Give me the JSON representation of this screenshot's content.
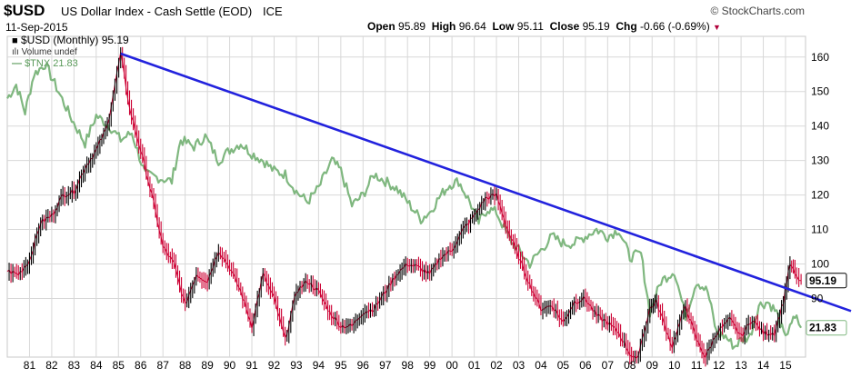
{
  "header": {
    "ticker": "$USD",
    "name": "US Dollar Index - Cash Settle (EOD)",
    "exchange": "ICE",
    "brand": "© StockCharts.com",
    "date": "11-Sep-2015",
    "open_label": "Open",
    "open": "95.89",
    "high_label": "High",
    "high": "96.64",
    "low_label": "Low",
    "low": "95.11",
    "close_label": "Close",
    "close": "95.19",
    "chg_label": "Chg",
    "chg": "-0.66 (-0.69%)"
  },
  "legend": {
    "main": "$USD (Monthly) 95.19",
    "volume": "Volume undef",
    "tnx": "$TNX 21.83"
  },
  "colors": {
    "up": "#000000",
    "down": "#cc0033",
    "tnx": "#7fb77f",
    "trendline": "#2222dd",
    "grid": "#d8d8d8"
  },
  "chart_data": {
    "type": "line",
    "ylim": [
      73,
      166
    ],
    "yticks": [
      90,
      100,
      110,
      120,
      130,
      140,
      150,
      160
    ],
    "y_right_labels": [
      {
        "value": 95.19,
        "label": "95.19"
      },
      {
        "value": 81.5,
        "label": "21.83"
      }
    ],
    "x_labels": [
      "81",
      "82",
      "83",
      "84",
      "85",
      "86",
      "87",
      "88",
      "89",
      "90",
      "91",
      "92",
      "93",
      "94",
      "95",
      "96",
      "97",
      "98",
      "99",
      "00",
      "01",
      "02",
      "03",
      "04",
      "05",
      "06",
      "07",
      "08",
      "09",
      "10",
      "11",
      "12",
      "13",
      "14",
      "15"
    ],
    "x_start_year": 1980.0,
    "x_end_year": 2015.9,
    "series": [
      {
        "name": "$USD (Monthly)",
        "kind": "price",
        "points": [
          [
            1980.0,
            98
          ],
          [
            1980.5,
            97
          ],
          [
            1981.0,
            101
          ],
          [
            1981.5,
            112
          ],
          [
            1982.0,
            114
          ],
          [
            1982.5,
            120
          ],
          [
            1983.0,
            121
          ],
          [
            1983.5,
            128
          ],
          [
            1984.0,
            133
          ],
          [
            1984.5,
            140
          ],
          [
            1985.1,
            161
          ],
          [
            1985.5,
            145
          ],
          [
            1986.0,
            133
          ],
          [
            1986.5,
            120
          ],
          [
            1987.0,
            105
          ],
          [
            1987.5,
            100
          ],
          [
            1988.0,
            88
          ],
          [
            1988.5,
            97
          ],
          [
            1989.0,
            95
          ],
          [
            1989.5,
            104
          ],
          [
            1990.0,
            99
          ],
          [
            1990.5,
            92
          ],
          [
            1991.0,
            82
          ],
          [
            1991.5,
            97
          ],
          [
            1992.0,
            90
          ],
          [
            1992.5,
            78
          ],
          [
            1993.0,
            92
          ],
          [
            1993.5,
            95
          ],
          [
            1994.0,
            92
          ],
          [
            1994.5,
            86
          ],
          [
            1995.0,
            82
          ],
          [
            1995.5,
            82
          ],
          [
            1996.0,
            86
          ],
          [
            1996.5,
            87
          ],
          [
            1997.0,
            92
          ],
          [
            1997.5,
            97
          ],
          [
            1998.0,
            100
          ],
          [
            1998.5,
            99
          ],
          [
            1999.0,
            97
          ],
          [
            1999.5,
            102
          ],
          [
            2000.0,
            104
          ],
          [
            2000.5,
            110
          ],
          [
            2001.0,
            114
          ],
          [
            2001.5,
            119
          ],
          [
            2002.0,
            120
          ],
          [
            2002.5,
            110
          ],
          [
            2003.0,
            102
          ],
          [
            2003.5,
            94
          ],
          [
            2004.0,
            87
          ],
          [
            2004.5,
            88
          ],
          [
            2005.0,
            83
          ],
          [
            2005.5,
            89
          ],
          [
            2006.0,
            90
          ],
          [
            2006.5,
            85
          ],
          [
            2007.0,
            83
          ],
          [
            2007.5,
            80
          ],
          [
            2008.0,
            74
          ],
          [
            2008.3,
            72
          ],
          [
            2008.9,
            87
          ],
          [
            2009.2,
            89
          ],
          [
            2009.9,
            76
          ],
          [
            2010.5,
            88
          ],
          [
            2011.0,
            78
          ],
          [
            2011.4,
            73
          ],
          [
            2011.9,
            80
          ],
          [
            2012.5,
            84
          ],
          [
            2013.0,
            79
          ],
          [
            2013.5,
            84
          ],
          [
            2014.0,
            80
          ],
          [
            2014.5,
            80
          ],
          [
            2014.9,
            89
          ],
          [
            2015.2,
            100
          ],
          [
            2015.5,
            96
          ],
          [
            2015.7,
            95.19
          ]
        ]
      },
      {
        "name": "$TNX",
        "kind": "overlay",
        "points": [
          [
            1980.0,
            148
          ],
          [
            1980.4,
            152
          ],
          [
            1980.8,
            144
          ],
          [
            1981.2,
            155
          ],
          [
            1981.7,
            158
          ],
          [
            1982.3,
            150
          ],
          [
            1982.9,
            142
          ],
          [
            1983.5,
            135
          ],
          [
            1984.0,
            143
          ],
          [
            1984.6,
            140
          ],
          [
            1985.1,
            136
          ],
          [
            1985.6,
            138
          ],
          [
            1986.2,
            126
          ],
          [
            1986.8,
            125
          ],
          [
            1987.4,
            124
          ],
          [
            1987.8,
            136
          ],
          [
            1988.4,
            134
          ],
          [
            1988.9,
            137
          ],
          [
            1989.5,
            130
          ],
          [
            1990.0,
            133
          ],
          [
            1990.5,
            135
          ],
          [
            1991.0,
            132
          ],
          [
            1991.5,
            130
          ],
          [
            1992.0,
            127
          ],
          [
            1992.5,
            126
          ],
          [
            1993.0,
            121
          ],
          [
            1993.5,
            118
          ],
          [
            1994.0,
            122
          ],
          [
            1994.6,
            130
          ],
          [
            1995.0,
            127
          ],
          [
            1995.5,
            117
          ],
          [
            1996.0,
            120
          ],
          [
            1996.5,
            126
          ],
          [
            1997.0,
            124
          ],
          [
            1997.5,
            122
          ],
          [
            1998.0,
            118
          ],
          [
            1998.6,
            113
          ],
          [
            1999.0,
            115
          ],
          [
            1999.5,
            120
          ],
          [
            1999.9,
            123
          ],
          [
            2000.3,
            124
          ],
          [
            2000.8,
            118
          ],
          [
            2001.2,
            112
          ],
          [
            2001.6,
            116
          ],
          [
            2002.0,
            115
          ],
          [
            2002.6,
            107
          ],
          [
            2003.0,
            104
          ],
          [
            2003.5,
            100
          ],
          [
            2004.0,
            104
          ],
          [
            2004.5,
            108
          ],
          [
            2005.0,
            106
          ],
          [
            2005.5,
            106
          ],
          [
            2006.0,
            108
          ],
          [
            2006.5,
            110
          ],
          [
            2007.0,
            108
          ],
          [
            2007.5,
            110
          ],
          [
            2008.0,
            102
          ],
          [
            2008.5,
            103
          ],
          [
            2008.9,
            86
          ],
          [
            2009.4,
            95
          ],
          [
            2010.0,
            98
          ],
          [
            2010.5,
            85
          ],
          [
            2011.0,
            95
          ],
          [
            2011.5,
            92
          ],
          [
            2011.9,
            80
          ],
          [
            2012.3,
            79
          ],
          [
            2012.7,
            76
          ],
          [
            2013.0,
            78
          ],
          [
            2013.4,
            79
          ],
          [
            2013.8,
            88
          ],
          [
            2014.2,
            89
          ],
          [
            2014.6,
            86
          ],
          [
            2015.0,
            78
          ],
          [
            2015.2,
            83
          ],
          [
            2015.5,
            84
          ],
          [
            2015.7,
            81.5
          ]
        ]
      }
    ],
    "trendline": {
      "x1": 1985.1,
      "y1": 161,
      "x2": 2015.9,
      "y2": 91
    }
  }
}
